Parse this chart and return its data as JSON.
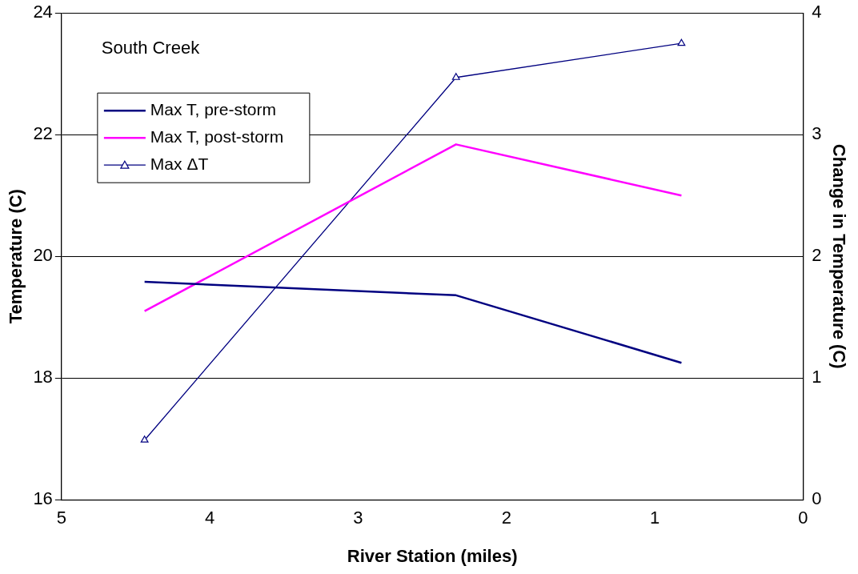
{
  "chart_data": {
    "type": "line",
    "xlabel": "River Station (miles)",
    "ylabel": "Temperature (C)",
    "y2label": "Change in Temperature (C)",
    "annotations": [
      "South Creek"
    ],
    "x": [
      4.44,
      2.34,
      0.82
    ],
    "series": [
      {
        "name": "Max T, pre-storm",
        "color": "#000080",
        "values": [
          19.58,
          19.36,
          18.25
        ],
        "marker": "none"
      },
      {
        "name": "Max T, post-storm",
        "color": "#ff00ff",
        "values": [
          19.1,
          21.84,
          21.0
        ],
        "marker": "none"
      },
      {
        "name": "Max ΔT",
        "color": "#000080",
        "values": [
          0.49,
          3.47,
          3.75
        ],
        "axis": "y2",
        "marker": "triangle"
      }
    ],
    "xlim": [
      5,
      0
    ],
    "xticks": [
      5,
      4,
      3,
      2,
      1,
      0
    ],
    "ylim": [
      16,
      24
    ],
    "yticks": [
      16,
      18,
      20,
      22,
      24
    ],
    "y2lim": [
      0,
      4
    ],
    "y2ticks": [
      0,
      1,
      2,
      3,
      4
    ],
    "grid": "y",
    "legend": "top left"
  }
}
